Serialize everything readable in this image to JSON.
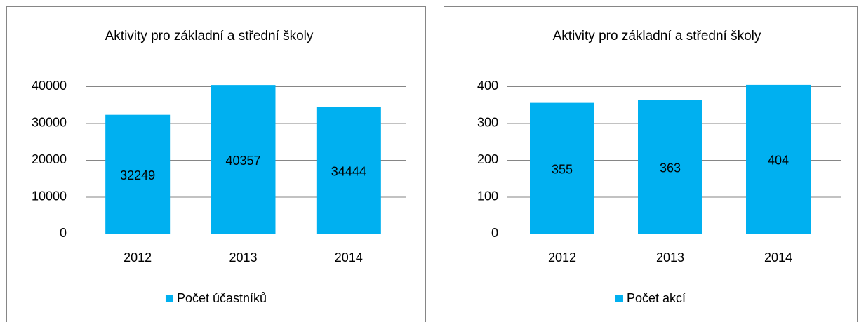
{
  "chart_data": [
    {
      "type": "bar",
      "title": "Aktivity pro základní a střední školy",
      "categories": [
        "2012",
        "2013",
        "2014"
      ],
      "series": [
        {
          "name": "Počet účastníků",
          "color": "#00b0f0",
          "values": [
            32249,
            40357,
            34444
          ]
        }
      ],
      "ylim": [
        0,
        40000
      ],
      "yticks": [
        0,
        10000,
        20000,
        30000,
        40000
      ],
      "grid": true,
      "legend": "bottom",
      "data_labels": true
    },
    {
      "type": "bar",
      "title": "Aktivity pro základní a střední školy",
      "categories": [
        "2012",
        "2013",
        "2014"
      ],
      "series": [
        {
          "name": "Počet akcí",
          "color": "#00b0f0",
          "values": [
            355,
            363,
            404
          ]
        }
      ],
      "ylim": [
        0,
        400
      ],
      "yticks": [
        0,
        100,
        200,
        300,
        400
      ],
      "grid": true,
      "legend": "bottom",
      "data_labels": true
    }
  ]
}
